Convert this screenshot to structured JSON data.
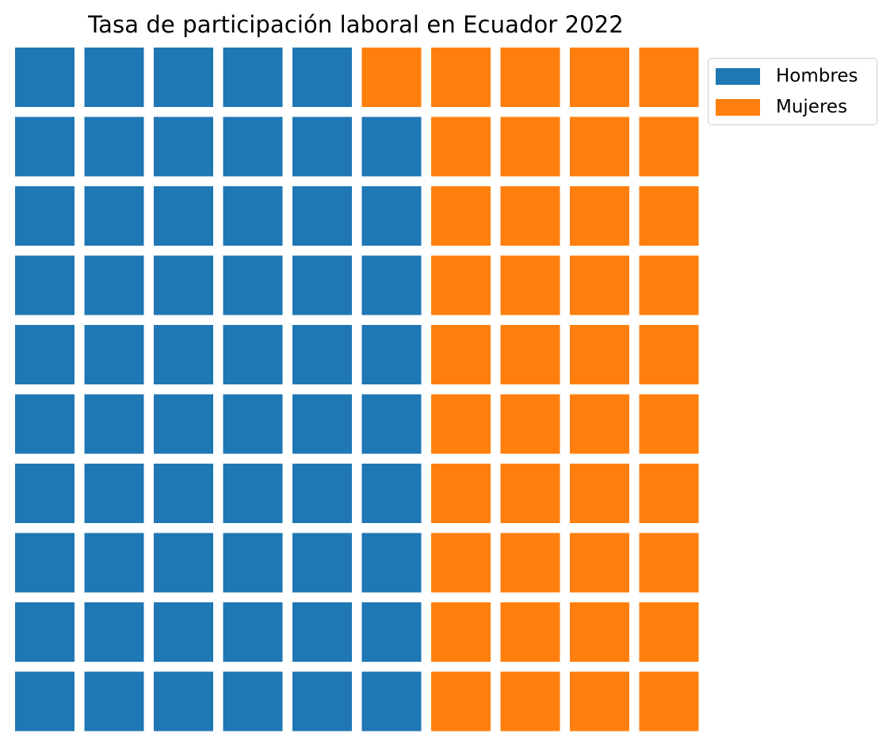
{
  "chart_data": {
    "type": "waffle",
    "title": "Tasa de participación laboral en Ecuador 2022",
    "rows": 10,
    "columns": 10,
    "total": 100,
    "series": [
      {
        "name": "Hombres",
        "value": 59,
        "color": "#1f77b4"
      },
      {
        "name": "Mujeres",
        "value": 41,
        "color": "#ff7f0e"
      }
    ],
    "fill_order": "column-wise, bottom-to-top, left-to-right",
    "legend": {
      "placement": "upper-right, outside plot"
    },
    "grid": false,
    "axes": false
  }
}
